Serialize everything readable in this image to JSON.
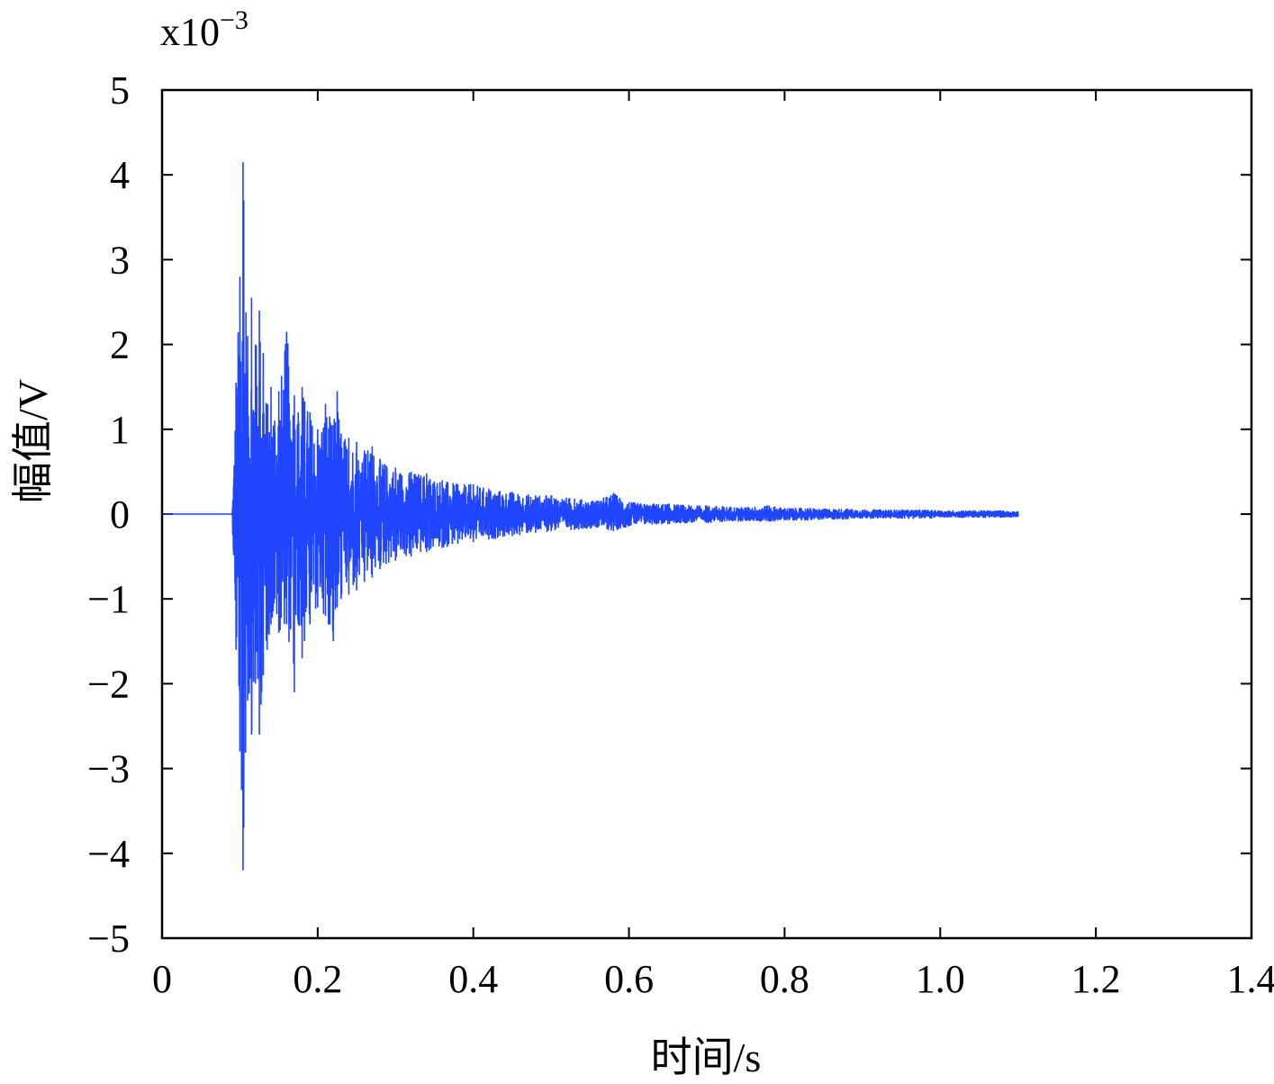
{
  "chart_data": {
    "type": "line",
    "title": "",
    "xlabel": "时间/s",
    "ylabel": "幅值/V",
    "y_exponent_label": "x10",
    "y_exponent_power": "−3",
    "xlim": [
      0,
      1.4
    ],
    "ylim": [
      -5,
      5
    ],
    "x_ticks": [
      "0",
      "0.2",
      "0.4",
      "0.6",
      "0.8",
      "1.0",
      "1.2",
      "1.4"
    ],
    "y_ticks": [
      "5",
      "4",
      "3",
      "2",
      "1",
      "0",
      "−1",
      "−2",
      "−3",
      "−4",
      "−5"
    ],
    "grid": false,
    "line_color": "#1f45ff",
    "series": [
      {
        "x": [
          0,
          0.09,
          0.095,
          0.1,
          0.104,
          0.105,
          0.11,
          0.115,
          0.12,
          0.125,
          0.13,
          0.135,
          0.14,
          0.15,
          0.16,
          0.17,
          0.175,
          0.18,
          0.19,
          0.2,
          0.21,
          0.22,
          0.225,
          0.23,
          0.24,
          0.25,
          0.26,
          0.27,
          0.28,
          0.3,
          0.32,
          0.34,
          0.36,
          0.38,
          0.4,
          0.42,
          0.45,
          0.48,
          0.5,
          0.53,
          0.56,
          0.58,
          0.6,
          0.62,
          0.65,
          0.68,
          0.7,
          0.72,
          0.75,
          0.78,
          0.8,
          0.83,
          0.85,
          0.88,
          0.9,
          0.93,
          0.95,
          0.98,
          1.0,
          1.03,
          1.05,
          1.08,
          1.1
        ],
        "upper": [
          0,
          0,
          1.55,
          2.8,
          4.15,
          3.7,
          2.1,
          2.55,
          2.0,
          2.4,
          1.9,
          1.3,
          1.5,
          1.45,
          2.15,
          1.4,
          1.2,
          1.5,
          1.2,
          1.0,
          1.3,
          1.05,
          1.45,
          0.95,
          0.9,
          0.85,
          0.75,
          0.8,
          0.65,
          0.55,
          0.5,
          0.48,
          0.4,
          0.35,
          0.35,
          0.3,
          0.26,
          0.22,
          0.22,
          0.18,
          0.16,
          0.25,
          0.14,
          0.12,
          0.12,
          0.1,
          0.1,
          0.09,
          0.08,
          0.1,
          0.07,
          0.07,
          0.06,
          0.06,
          0.05,
          0.05,
          0.05,
          0.05,
          0.04,
          0.04,
          0.04,
          0.04,
          0.03
        ],
        "lower": [
          0,
          0,
          -1.6,
          -2.8,
          -4.2,
          -3.7,
          -2.2,
          -2.6,
          -2.0,
          -2.6,
          -1.9,
          -1.6,
          -1.3,
          -1.4,
          -1.3,
          -2.1,
          -1.3,
          -1.7,
          -1.3,
          -1.1,
          -1.2,
          -1.5,
          -1.1,
          -1.0,
          -0.95,
          -0.9,
          -0.8,
          -0.75,
          -0.65,
          -0.55,
          -0.5,
          -0.45,
          -0.4,
          -0.35,
          -0.33,
          -0.3,
          -0.26,
          -0.22,
          -0.2,
          -0.18,
          -0.16,
          -0.2,
          -0.14,
          -0.12,
          -0.12,
          -0.1,
          -0.1,
          -0.09,
          -0.08,
          -0.09,
          -0.07,
          -0.07,
          -0.06,
          -0.06,
          -0.05,
          -0.05,
          -0.05,
          -0.05,
          -0.04,
          -0.04,
          -0.04,
          -0.04,
          -0.03
        ]
      }
    ]
  }
}
